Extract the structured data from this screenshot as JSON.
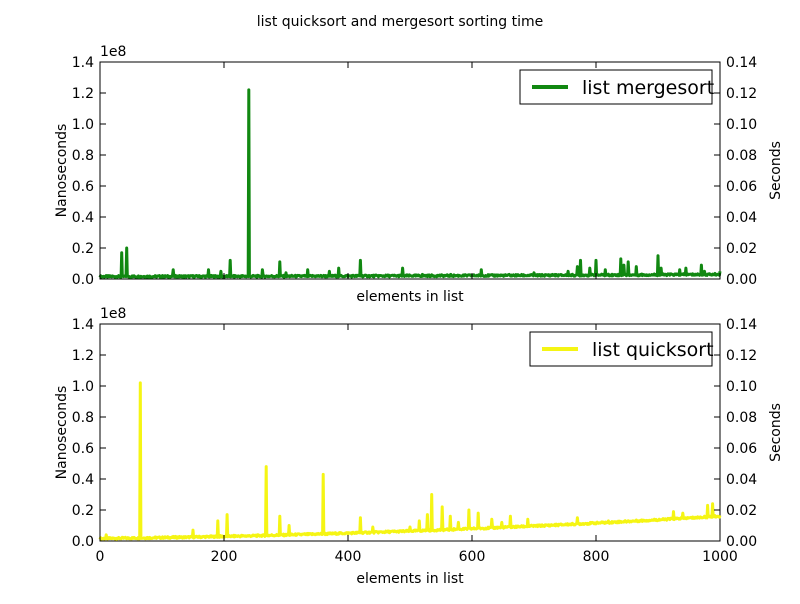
{
  "figure": {
    "title": "list quicksort and mergesort sorting time"
  },
  "chart_data": [
    {
      "type": "line",
      "title": "",
      "xlabel": "elements in list",
      "ylabel": "Nanoseconds",
      "ylabel_right": "Seconds",
      "y_offset_label": "1e8",
      "xlim": [
        0,
        1000
      ],
      "ylim": [
        0,
        1.4
      ],
      "ylim_right": [
        0,
        0.14
      ],
      "yticks": [
        "0.0",
        "0.2",
        "0.4",
        "0.6",
        "0.8",
        "1.0",
        "1.2",
        "1.4"
      ],
      "yticks_right": [
        "0.00",
        "0.02",
        "0.04",
        "0.06",
        "0.08",
        "0.10",
        "0.12",
        "0.14"
      ],
      "xticks_visible": false,
      "legend": "top-right",
      "series": [
        {
          "name": "list mergesort",
          "color": "#118811",
          "baseline": 0.01,
          "growth": 0.015,
          "spikes": [
            [
              35,
              0.17
            ],
            [
              43,
              0.2
            ],
            [
              55,
              0.02
            ],
            [
              100,
              0.02
            ],
            [
              118,
              0.06
            ],
            [
              148,
              0.02
            ],
            [
              175,
              0.06
            ],
            [
              195,
              0.05
            ],
            [
              210,
              0.12
            ],
            [
              240,
              1.22
            ],
            [
              262,
              0.06
            ],
            [
              290,
              0.11
            ],
            [
              300,
              0.04
            ],
            [
              335,
              0.06
            ],
            [
              370,
              0.05
            ],
            [
              385,
              0.07
            ],
            [
              420,
              0.12
            ],
            [
              488,
              0.07
            ],
            [
              520,
              0.03
            ],
            [
              566,
              0.03
            ],
            [
              615,
              0.06
            ],
            [
              660,
              0.03
            ],
            [
              700,
              0.04
            ],
            [
              730,
              0.03
            ],
            [
              755,
              0.05
            ],
            [
              770,
              0.08
            ],
            [
              775,
              0.12
            ],
            [
              790,
              0.07
            ],
            [
              800,
              0.12
            ],
            [
              815,
              0.06
            ],
            [
              840,
              0.13
            ],
            [
              845,
              0.09
            ],
            [
              852,
              0.11
            ],
            [
              865,
              0.08
            ],
            [
              900,
              0.15
            ],
            [
              905,
              0.07
            ],
            [
              935,
              0.06
            ],
            [
              945,
              0.07
            ],
            [
              970,
              0.09
            ],
            [
              975,
              0.05
            ],
            [
              1000,
              0.05
            ]
          ]
        }
      ]
    },
    {
      "type": "line",
      "title": "",
      "xlabel": "elements in list",
      "ylabel": "Nanoseconds",
      "ylabel_right": "Seconds",
      "y_offset_label": "1e8",
      "xlim": [
        0,
        1000
      ],
      "ylim": [
        0,
        1.4
      ],
      "ylim_right": [
        0,
        0.14
      ],
      "xticks": [
        "0",
        "200",
        "400",
        "600",
        "800",
        "1000"
      ],
      "yticks": [
        "0.0",
        "0.2",
        "0.4",
        "0.6",
        "0.8",
        "1.0",
        "1.2",
        "1.4"
      ],
      "yticks_right": [
        "0.00",
        "0.02",
        "0.04",
        "0.06",
        "0.08",
        "0.10",
        "0.12",
        "0.14"
      ],
      "legend": "top-right",
      "series": [
        {
          "name": "list quicksort",
          "color": "#f5f514",
          "baseline": 0.01,
          "growth": 0.16,
          "spikes": [
            [
              10,
              0.04
            ],
            [
              65,
              1.02
            ],
            [
              150,
              0.07
            ],
            [
              190,
              0.13
            ],
            [
              205,
              0.17
            ],
            [
              268,
              0.48
            ],
            [
              290,
              0.16
            ],
            [
              305,
              0.1
            ],
            [
              360,
              0.43
            ],
            [
              420,
              0.15
            ],
            [
              440,
              0.09
            ],
            [
              500,
              0.09
            ],
            [
              515,
              0.13
            ],
            [
              528,
              0.17
            ],
            [
              535,
              0.3
            ],
            [
              552,
              0.22
            ],
            [
              565,
              0.16
            ],
            [
              578,
              0.12
            ],
            [
              595,
              0.2
            ],
            [
              610,
              0.18
            ],
            [
              632,
              0.14
            ],
            [
              648,
              0.12
            ],
            [
              662,
              0.16
            ],
            [
              690,
              0.14
            ],
            [
              770,
              0.15
            ],
            [
              820,
              0.13
            ],
            [
              925,
              0.19
            ],
            [
              940,
              0.18
            ],
            [
              980,
              0.23
            ],
            [
              988,
              0.24
            ],
            [
              1000,
              0.16
            ]
          ]
        }
      ]
    }
  ]
}
